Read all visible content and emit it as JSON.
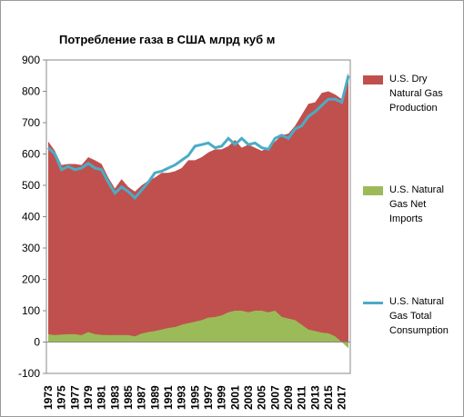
{
  "chart_data": {
    "type": "area-line",
    "title": "Потребление газа в США  млрд куб м",
    "categories": [
      "1973",
      null,
      "1975",
      null,
      "1977",
      null,
      "1979",
      null,
      "1981",
      null,
      "1983",
      null,
      "1985",
      null,
      "1987",
      null,
      "1989",
      null,
      "1991",
      null,
      "1993",
      null,
      "1995",
      null,
      "1997",
      null,
      "1999",
      null,
      "2001",
      null,
      "2003",
      null,
      "2005",
      null,
      "2007",
      null,
      "2009",
      null,
      "2011",
      null,
      "2013",
      null,
      "2015",
      null,
      "2017",
      null
    ],
    "series": [
      {
        "name": "U.S. Dry Natural Gas Production",
        "color": "#c0504d",
        "kind": "area",
        "values": [
          640,
          610,
          565,
          568,
          568,
          565,
          590,
          580,
          568,
          525,
          490,
          520,
          495,
          480,
          500,
          515,
          525,
          540,
          540,
          545,
          555,
          580,
          580,
          590,
          605,
          615,
          615,
          625,
          645,
          620,
          630,
          620,
          610,
          620,
          640,
          660,
          665,
          690,
          725,
          760,
          765,
          795,
          800,
          790,
          775,
          860
        ]
      },
      {
        "name": "U.S. Natural Gas Net Imports",
        "color": "#9bbb59",
        "kind": "area",
        "values": [
          25,
          22,
          24,
          25,
          25,
          22,
          32,
          25,
          23,
          22,
          22,
          22,
          22,
          18,
          27,
          32,
          35,
          40,
          45,
          48,
          55,
          60,
          65,
          70,
          78,
          80,
          85,
          95,
          100,
          100,
          95,
          100,
          100,
          95,
          100,
          80,
          75,
          70,
          55,
          40,
          35,
          30,
          28,
          18,
          0,
          -20
        ]
      },
      {
        "name": "U.S. Natural Gas Total Consumption",
        "color": "#4bacc6",
        "kind": "line",
        "values": [
          620,
          600,
          550,
          560,
          550,
          555,
          570,
          555,
          550,
          510,
          475,
          495,
          480,
          460,
          485,
          510,
          540,
          545,
          555,
          565,
          580,
          595,
          625,
          630,
          635,
          620,
          625,
          650,
          630,
          650,
          630,
          635,
          620,
          615,
          650,
          660,
          650,
          680,
          690,
          720,
          735,
          755,
          775,
          775,
          765,
          850
        ]
      }
    ],
    "ylim": [
      -100,
      900
    ],
    "yticks": [
      -100,
      0,
      100,
      200,
      300,
      400,
      500,
      600,
      700,
      800,
      900
    ],
    "grid": false,
    "legend": "right"
  }
}
